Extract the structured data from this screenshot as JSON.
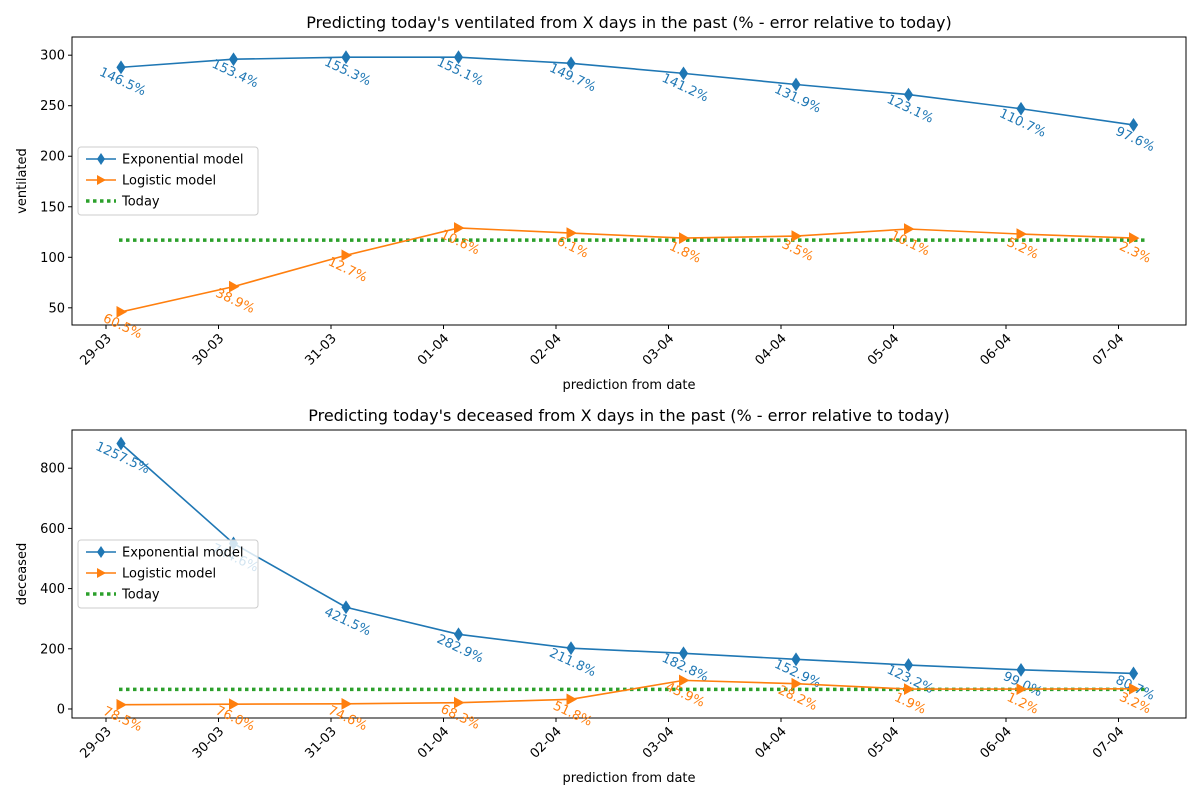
{
  "chart_data": [
    {
      "type": "line",
      "title": "Predicting today's ventilated from X days in the past (% - error relative to today)",
      "xlabel": "prediction from date",
      "ylabel": "ventilated",
      "categories": [
        "29-03",
        "30-03",
        "31-03",
        "01-04",
        "02-04",
        "03-04",
        "04-04",
        "05-04",
        "06-04",
        "07-04"
      ],
      "ylim": [
        33,
        318
      ],
      "yticks": [
        50,
        100,
        150,
        200,
        250,
        300
      ],
      "legend": "center-left",
      "colors": {
        "exponential": "#1f77b4",
        "logistic": "#ff7f0e",
        "today": "#2ca02c"
      },
      "series": [
        {
          "name": "Exponential model",
          "marker": "diamond",
          "values": [
            288,
            296,
            298,
            298,
            292,
            282,
            271,
            261,
            247,
            231
          ],
          "labels": [
            "146.5%",
            "153.4%",
            "155.3%",
            "155.1%",
            "149.7%",
            "141.2%",
            "131.9%",
            "123.1%",
            "110.7%",
            "97.6%"
          ]
        },
        {
          "name": "Logistic model",
          "marker": "triangle-right",
          "values": [
            46,
            71,
            102,
            129,
            124,
            119,
            121,
            128,
            123,
            119
          ],
          "labels": [
            "60.5%",
            "38.9%",
            "12.7%",
            "10.6%",
            "6.1%",
            "1.8%",
            "3.5%",
            "10.1%",
            "5.2%",
            "2.3%"
          ]
        },
        {
          "name": "Today",
          "style": "dotted",
          "value": 117
        }
      ]
    },
    {
      "type": "line",
      "title": "Predicting today's deceased from X days in the past (% - error relative to today)",
      "xlabel": "prediction from date",
      "ylabel": "deceased",
      "categories": [
        "29-03",
        "30-03",
        "31-03",
        "01-04",
        "02-04",
        "03-04",
        "04-04",
        "05-04",
        "06-04",
        "07-04"
      ],
      "ylim": [
        -30,
        927
      ],
      "yticks": [
        0,
        200,
        400,
        600,
        800
      ],
      "legend": "center-left",
      "colors": {
        "exponential": "#1f77b4",
        "logistic": "#ff7f0e",
        "today": "#2ca02c"
      },
      "series": [
        {
          "name": "Exponential model",
          "marker": "diamond",
          "values": [
            882,
            550,
            338,
            248,
            202,
            185,
            165,
            146,
            130,
            118
          ],
          "labels": [
            "1257.5%",
            "744.6%",
            "421.5%",
            "282.9%",
            "211.8%",
            "182.8%",
            "152.9%",
            "123.2%",
            "99.0%",
            "80.7%"
          ]
        },
        {
          "name": "Logistic model",
          "marker": "triangle-right",
          "values": [
            14,
            16,
            17,
            21,
            32,
            95,
            84,
            66,
            66,
            67
          ],
          "labels": [
            "78.5%",
            "76.0%",
            "74.6%",
            "68.3%",
            "51.8%",
            "45.9%",
            "28.2%",
            "1.9%",
            "1.2%",
            "3.2%"
          ]
        },
        {
          "name": "Today",
          "style": "dotted",
          "value": 65
        }
      ]
    }
  ]
}
